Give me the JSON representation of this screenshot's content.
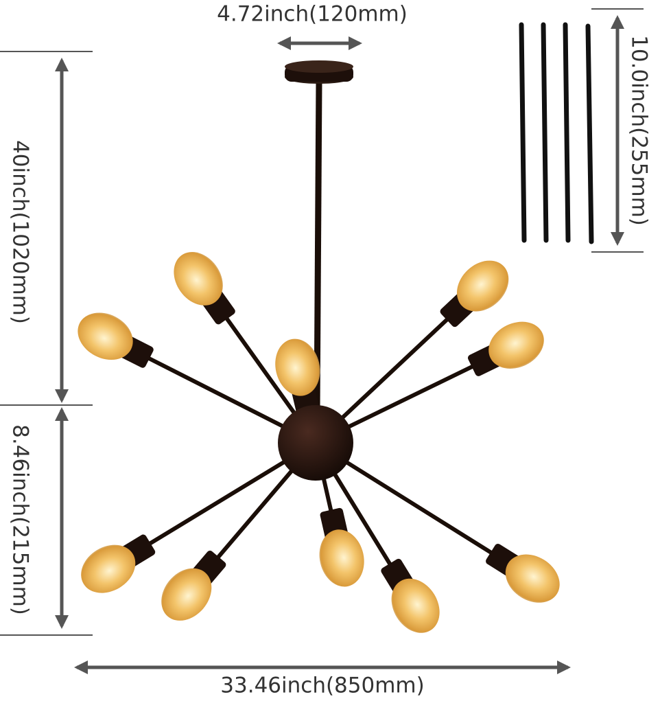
{
  "dimensions": {
    "canopy_width": "4.72inch(120mm)",
    "rod_length": "10.0inch(255mm)",
    "total_height": "40inch(1020mm)",
    "body_height": "8.46inch(215mm)",
    "total_width": "33.46inch(850mm)"
  }
}
